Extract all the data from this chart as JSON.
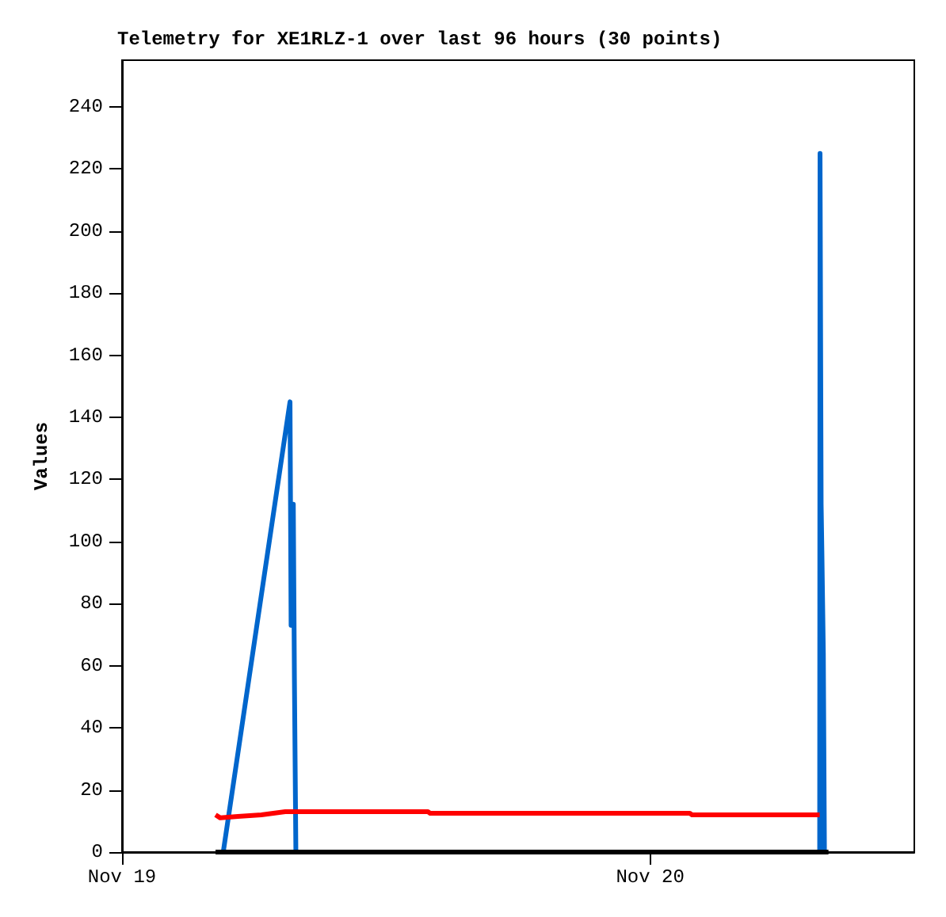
{
  "chart_data": {
    "type": "line",
    "title": "Telemetry for XE1RLZ-1 over last 96 hours (30 points)",
    "ylabel": "Values",
    "xlim": [
      "--11-19",
      "--11-20T12:00"
    ],
    "xticks": [
      {
        "value": "--11-19",
        "label": "Nov 19"
      },
      {
        "value": "--11-20",
        "label": "Nov 20"
      }
    ],
    "ylim": [
      0,
      255
    ],
    "yticks": [
      0,
      20,
      40,
      60,
      80,
      100,
      120,
      140,
      160,
      180,
      200,
      220,
      240
    ],
    "grid": false,
    "marker": "none",
    "line_style": "solid",
    "series": [
      {
        "color": "#0066cc",
        "x": [
          "--11-19T04:36",
          "--11-19T07:38",
          "--11-19T07:41",
          "--11-19T07:43",
          "--11-19T07:47",
          "--11-19T07:50",
          "--11-19T07:54",
          "--11-20T07:42",
          "--11-20T07:43",
          "--11-20T07:46",
          "--11-20T07:48",
          "--11-20T07:52",
          "--11-20T07:55"
        ],
        "values": [
          0,
          145,
          73,
          112,
          112,
          56,
          0,
          0,
          225,
          112,
          97,
          64,
          0
        ]
      },
      {
        "color": "#ff0000",
        "x": [
          "--11-19T04:15",
          "--11-19T04:28",
          "--11-19T05:16",
          "--11-19T06:20",
          "--11-19T07:25",
          "--11-19T13:54",
          "--11-19T14:00",
          "--11-20T01:48",
          "--11-20T01:54",
          "--11-20T07:42"
        ],
        "values": [
          12,
          11,
          11.5,
          12,
          13,
          13,
          12.5,
          12.5,
          12,
          12
        ]
      },
      {
        "color": "#000000",
        "x": [
          "--11-19T04:15",
          "--11-20T08:06"
        ],
        "values": [
          0,
          0
        ]
      }
    ]
  }
}
